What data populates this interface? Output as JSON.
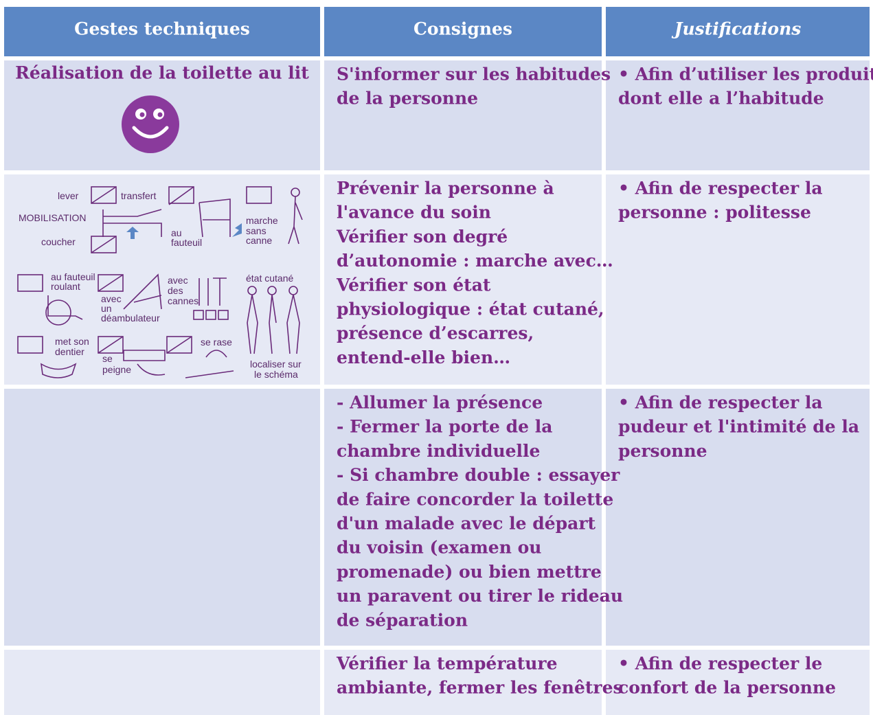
{
  "header": [
    "Gestes techniques",
    "Consignes",
    "Justifications"
  ],
  "rows": [
    {
      "gesture": "Réalisation de la toilette au lit",
      "consignes": [
        "S'informer sur les habitudes",
        "de la personne"
      ],
      "justifications": [
        "• Afin d’utiliser les produits",
        "dont elle a l’habitude"
      ]
    },
    {
      "illustration": [
        "lever",
        "transfert",
        "MOBILISATION",
        "coucher",
        "au",
        "fauteuil",
        "marche",
        "sans",
        "canne",
        "au fauteuil",
        "roulant",
        "avec",
        "un",
        "déambulateur",
        "avec",
        "des",
        "cannes",
        "état cutané",
        "met son",
        "dentier",
        "se",
        "peigne",
        "se rase",
        "localiser sur",
        "le schéma"
      ],
      "consignes": [
        "Prévenir la personne à",
        "l'avance du soin",
        "Vérifier son degré",
        "d’autonomie : marche avec…",
        "Vérifier son état",
        "physiologique : état cutané,",
        "présence d’escarres,",
        "entend-elle bien…"
      ],
      "justifications": [
        "• Afin de respecter la",
        "personne : politesse"
      ]
    },
    {
      "consignes": [
        "- Allumer la présence",
        "- Fermer la porte de la",
        "chambre individuelle",
        "- Si chambre double : essayer",
        "de faire concorder la toilette",
        "d'un malade avec le départ",
        "du voisin (examen ou",
        "promenade) ou bien mettre",
        "un paravent ou tirer le rideau",
        "de séparation"
      ],
      "justifications": [
        "• Afin de respecter la",
        "pudeur et l'intimité de la",
        "personne"
      ]
    },
    {
      "consignes": [
        "Vérifier la température",
        "ambiante, fermer les fenêtres"
      ],
      "justifications": [
        "• Afin de respecter le",
        "confort de la personne"
      ]
    }
  ]
}
